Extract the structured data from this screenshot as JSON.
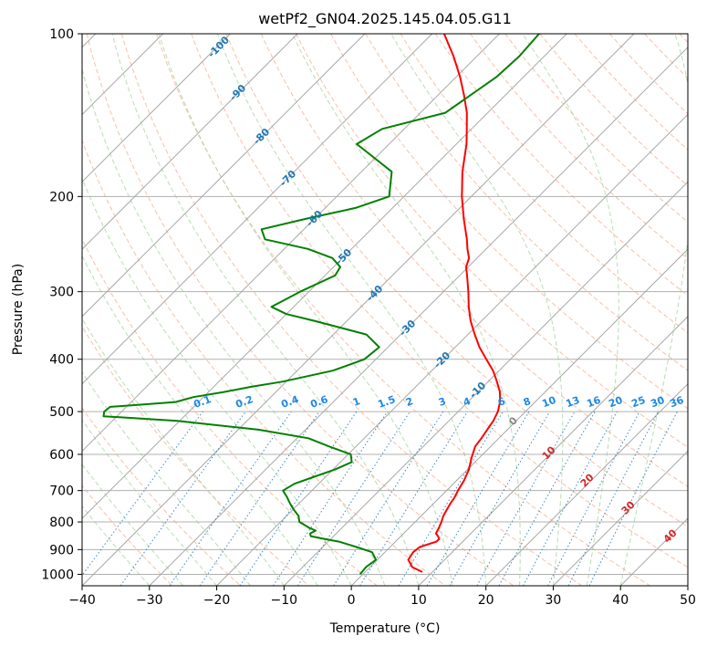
{
  "chart_data": {
    "type": "line",
    "title": "wetPf2_GN04.2025.145.04.05.G11",
    "xlabel": "Temperature (°C)",
    "ylabel": "Pressure (hPa)",
    "xlim": [
      -40,
      50
    ],
    "ylim": [
      1050,
      100
    ],
    "y_scale": "log",
    "grid": true,
    "x_ticks": [
      "−40",
      "−30",
      "−20",
      "−10",
      "0",
      "10",
      "20",
      "30",
      "40",
      "50"
    ],
    "y_ticks": [
      "100",
      "200",
      "300",
      "400",
      "500",
      "600",
      "700",
      "800",
      "900",
      "1000"
    ],
    "skew_t": true,
    "series": [
      {
        "color": "#ff0000",
        "pressure": [
          990,
          970,
          940,
          910,
          890,
          870,
          860,
          850,
          840,
          820,
          800,
          780,
          760,
          740,
          720,
          700,
          670,
          640,
          610,
          580,
          560,
          540,
          520,
          500,
          480,
          460,
          440,
          420,
          400,
          380,
          360,
          340,
          320,
          300,
          280,
          270,
          260,
          250,
          240,
          220,
          200,
          180,
          160,
          150,
          140,
          130,
          120,
          110,
          105,
          100
        ],
        "temperature": [
          8.5,
          6.3,
          4.6,
          4.2,
          4.4,
          6.1,
          6.1,
          5.5,
          4.8,
          4.4,
          3.9,
          3.3,
          2.9,
          2.5,
          2.2,
          1.7,
          1.1,
          0.2,
          -1.1,
          -2.3,
          -2.6,
          -3.0,
          -3.4,
          -4.1,
          -5.2,
          -6.7,
          -8.7,
          -10.9,
          -13.6,
          -16.4,
          -19.0,
          -21.6,
          -24.0,
          -26.3,
          -28.9,
          -30.3,
          -31.2,
          -32.8,
          -34.3,
          -37.8,
          -41.4,
          -45.0,
          -48.5,
          -50.7,
          -53.1,
          -56.1,
          -59.5,
          -63.5,
          -65.8,
          -68.2
        ]
      },
      {
        "color": "#008000",
        "pressure": [
          1000,
          970,
          940,
          910,
          890,
          870,
          860,
          850,
          840,
          830,
          820,
          800,
          780,
          760,
          740,
          720,
          700,
          680,
          660,
          640,
          620,
          600,
          580,
          560,
          540,
          520,
          510,
          500,
          490,
          480,
          470,
          460,
          450,
          440,
          420,
          400,
          380,
          360,
          340,
          330,
          320,
          300,
          280,
          270,
          260,
          250,
          240,
          230,
          220,
          210,
          200,
          180,
          170,
          160,
          150,
          140,
          120,
          110,
          100
        ],
        "temperature": [
          -0.4,
          -0.6,
          -0.2,
          -1.9,
          -5.0,
          -8.4,
          -11.0,
          -13.4,
          -13.9,
          -13.5,
          -14.9,
          -17.2,
          -18.2,
          -19.8,
          -21.3,
          -22.7,
          -24.3,
          -23.6,
          -21.7,
          -19.7,
          -18.3,
          -19.6,
          -24.0,
          -28.3,
          -37.0,
          -50.4,
          -62.0,
          -62.6,
          -62.4,
          -53.4,
          -51.5,
          -47.7,
          -44.5,
          -40.5,
          -34.7,
          -31.7,
          -31.3,
          -35.1,
          -44.7,
          -50.0,
          -53.3,
          -51.3,
          -48.5,
          -49.0,
          -51.5,
          -56.5,
          -64.3,
          -66.3,
          -61.3,
          -55.5,
          -52.2,
          -55.5,
          -60.0,
          -64.8,
          -63.3,
          -56.3,
          -54.0,
          -53.7,
          -54.1
        ]
      }
    ],
    "isotherm_labels": [
      "-100",
      "-90",
      "-80",
      "-70",
      "-60",
      "-50",
      "-40",
      "-30",
      "-20",
      "-10",
      "0",
      "10",
      "20",
      "30",
      "40"
    ],
    "mixing_ratio_labels": [
      "0.1",
      "0.2",
      "0.4",
      "0.6",
      "1",
      "1.5",
      "2",
      "3",
      "4",
      "6",
      "8",
      "10",
      "13",
      "16",
      "20",
      "25",
      "30",
      "36"
    ]
  }
}
